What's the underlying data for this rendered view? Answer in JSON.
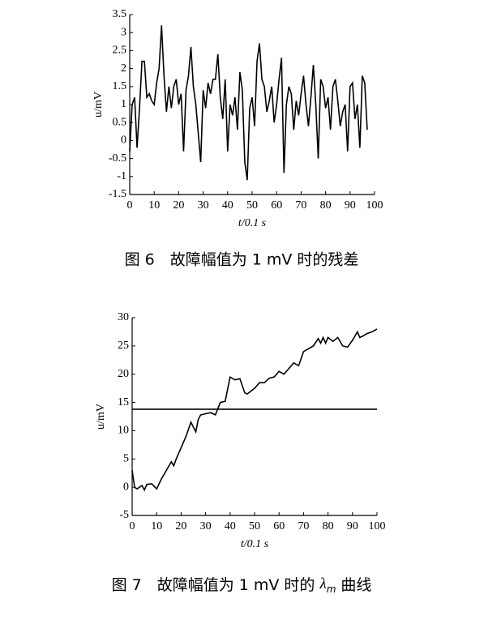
{
  "chart_data": [
    {
      "type": "line",
      "x_label": "t/0.1 s",
      "y_label": "u/mV",
      "caption": "图 6　故障幅值为 1 mV 时的残差",
      "xlim": [
        0,
        100
      ],
      "xticks": [
        0,
        10,
        20,
        30,
        40,
        50,
        60,
        70,
        80,
        90,
        100
      ],
      "ylim": [
        -1.5,
        3.5
      ],
      "yticks": [
        -1.5,
        -1,
        -0.5,
        0,
        0.5,
        1,
        1.5,
        2,
        2.5,
        3,
        3.5
      ],
      "series": [
        {
          "color": "#000000",
          "x": [
            0,
            1,
            2,
            3,
            4,
            5,
            6,
            7,
            8,
            9,
            10,
            11,
            12,
            13,
            14,
            15,
            16,
            17,
            18,
            19,
            20,
            21,
            22,
            23,
            24,
            25,
            26,
            27,
            28,
            29,
            30,
            31,
            32,
            33,
            34,
            35,
            36,
            37,
            38,
            39,
            40,
            41,
            42,
            43,
            44,
            45,
            46,
            47,
            48,
            49,
            50,
            51,
            52,
            53,
            54,
            55,
            56,
            57,
            58,
            59,
            60,
            61,
            62,
            63,
            64,
            65,
            66,
            67,
            68,
            69,
            70,
            71,
            72,
            73,
            74,
            75,
            76,
            77,
            78,
            79,
            80,
            81,
            82,
            83,
            84,
            85,
            86,
            87,
            88,
            89,
            90,
            91,
            92,
            93,
            94,
            95,
            96,
            97
          ],
          "values": [
            -0.3,
            1.0,
            1.2,
            -0.2,
            0.9,
            2.2,
            2.2,
            1.2,
            1.3,
            1.1,
            1.0,
            1.6,
            2.0,
            3.2,
            1.8,
            0.8,
            1.5,
            0.9,
            1.5,
            1.7,
            1.0,
            1.3,
            -0.3,
            1.4,
            1.8,
            2.6,
            1.5,
            1.0,
            0.2,
            -0.6,
            1.4,
            0.9,
            1.6,
            1.3,
            1.7,
            1.7,
            2.4,
            1.2,
            0.6,
            1.7,
            -0.3,
            1.0,
            0.7,
            1.2,
            0.3,
            1.9,
            1.4,
            -0.6,
            -1.1,
            0.9,
            1.2,
            0.4,
            2.2,
            2.7,
            1.7,
            1.5,
            0.8,
            1.1,
            1.5,
            0.5,
            1.0,
            1.7,
            2.3,
            -0.9,
            1.0,
            1.5,
            1.3,
            0.3,
            1.1,
            0.7,
            1.3,
            1.8,
            1.0,
            0.4,
            1.2,
            2.1,
            1.0,
            -0.5,
            1.7,
            1.5,
            0.9,
            1.2,
            0.3,
            1.5,
            1.7,
            1.1,
            0.4,
            0.8,
            1.0,
            -0.3,
            1.5,
            1.6,
            0.6,
            1.0,
            -0.2,
            1.8,
            1.6,
            0.3
          ]
        }
      ]
    },
    {
      "type": "line",
      "x_label": "t/0.1 s",
      "y_label": "u/mV",
      "caption": "图 7　故障幅值为 1 mV 时的 ",
      "caption_symbol": "λ",
      "caption_subscript": "m",
      "caption_end": " 曲线",
      "xlim": [
        0,
        100
      ],
      "xticks": [
        0,
        10,
        20,
        30,
        40,
        50,
        60,
        70,
        80,
        90,
        100
      ],
      "ylim": [
        -5,
        30
      ],
      "yticks": [
        -5,
        0,
        5,
        10,
        15,
        20,
        25,
        30
      ],
      "series": [
        {
          "color": "#000000",
          "x": [
            0,
            1,
            2,
            4,
            5,
            6,
            8,
            10,
            12,
            14,
            16,
            17,
            18,
            20,
            22,
            24,
            26,
            27,
            28,
            30,
            32,
            34,
            36,
            38,
            40,
            42,
            44,
            46,
            47,
            50,
            52,
            54,
            56,
            58,
            60,
            62,
            64,
            66,
            68,
            70,
            72,
            74,
            76,
            77,
            78,
            79,
            80,
            82,
            84,
            86,
            88,
            90,
            92,
            93,
            94,
            96,
            98,
            100
          ],
          "values": [
            3.0,
            0,
            -0.3,
            0.3,
            -0.5,
            0.5,
            0.6,
            -0.3,
            1.5,
            3,
            4.5,
            3.8,
            5,
            7,
            9,
            11.5,
            9.8,
            12,
            12.8,
            13,
            13.2,
            12.8,
            15,
            15.2,
            19.5,
            19,
            19.2,
            16.7,
            16.5,
            17.5,
            18.5,
            18.5,
            19.3,
            19.5,
            20.5,
            20,
            21,
            22,
            21.5,
            24,
            24.5,
            25,
            26.3,
            25.5,
            26.5,
            25.5,
            26.5,
            25.8,
            26.5,
            25,
            24.8,
            26,
            27.5,
            26.5,
            26.7,
            27.2,
            27.5,
            28
          ]
        },
        {
          "color": "#000000",
          "x": [
            0,
            100
          ],
          "values": [
            13.8,
            13.8
          ]
        }
      ]
    }
  ]
}
